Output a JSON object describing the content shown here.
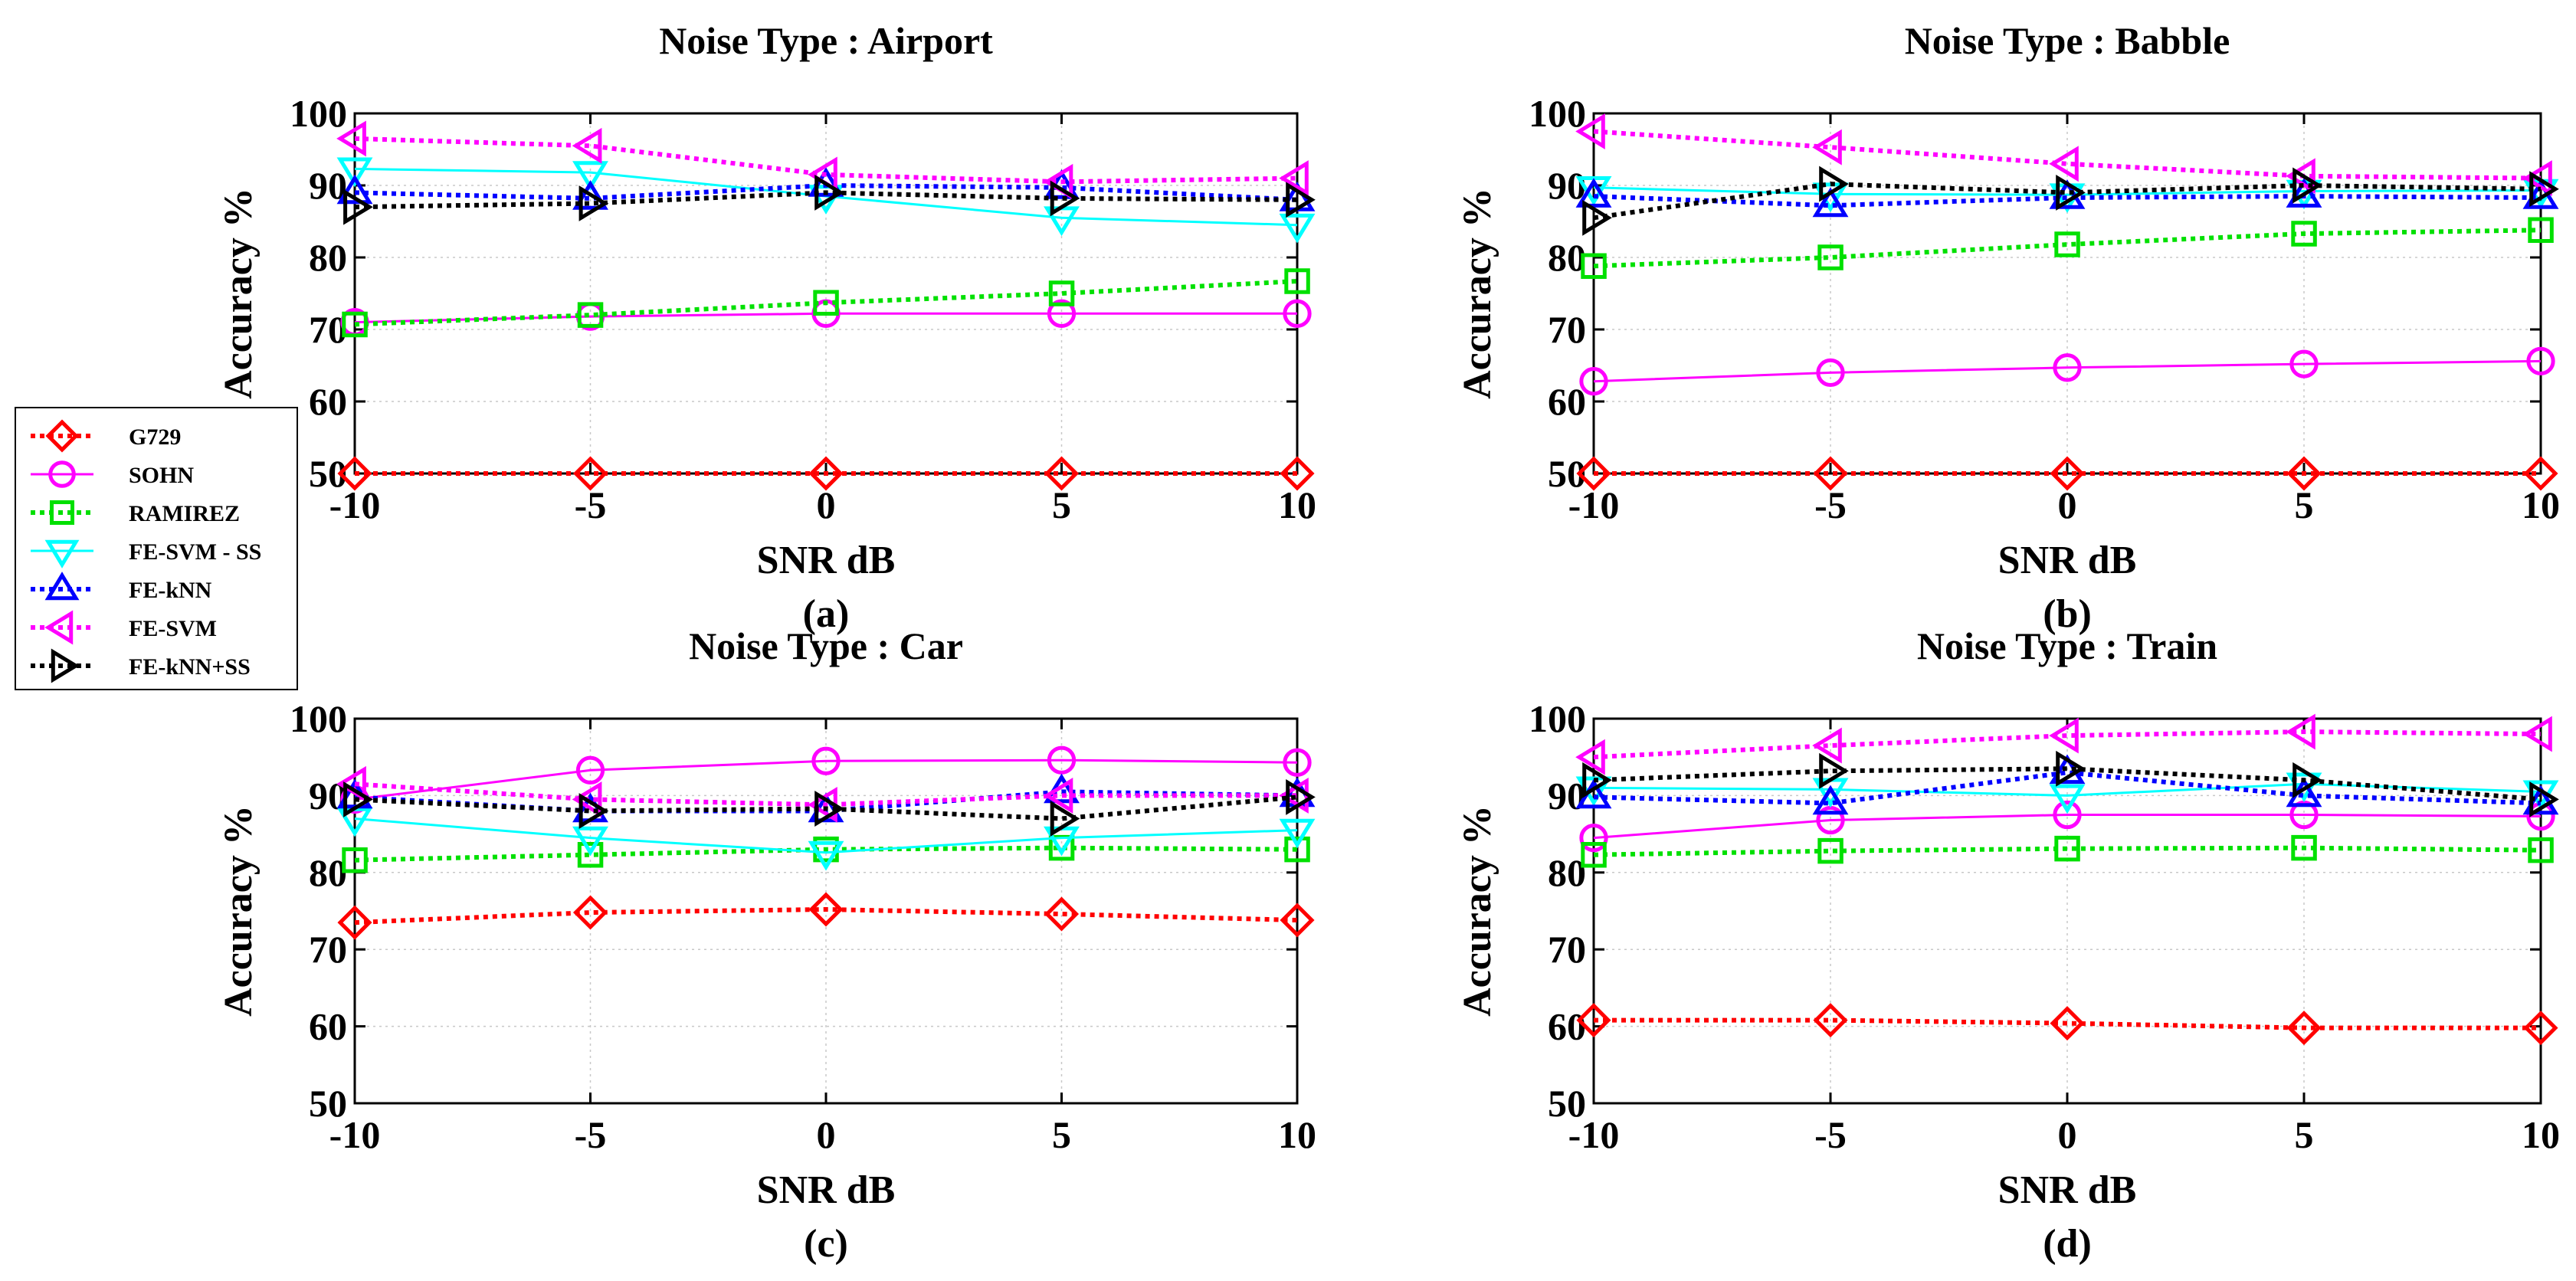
{
  "chart_data": [
    {
      "type": "line",
      "id": "a",
      "title": "Noise Type : Airport",
      "xlabel": "SNR  dB",
      "ylabel": "Accuracy  %",
      "caption": "(a)",
      "x": [
        -10,
        -5,
        0,
        5,
        10
      ],
      "xticks": [
        "-10",
        "-5",
        "0",
        "5",
        "10"
      ],
      "yticks": [
        "50",
        "60",
        "70",
        "80",
        "90",
        "100"
      ],
      "xlim": [
        -10,
        10
      ],
      "ylim": [
        50,
        100
      ],
      "grid": true,
      "series": [
        {
          "name": "G729",
          "values": [
            50,
            50,
            50,
            50,
            50
          ]
        },
        {
          "name": "SOHN",
          "values": [
            71,
            71.8,
            72.2,
            72.2,
            72.2
          ]
        },
        {
          "name": "RAMIREZ",
          "values": [
            70.7,
            72,
            73.7,
            75,
            76.7
          ]
        },
        {
          "name": "FE-SVM - SS",
          "values": [
            92.3,
            91.8,
            88.5,
            85.5,
            84.5
          ]
        },
        {
          "name": "FE-kNN",
          "values": [
            89,
            88.2,
            90,
            89.7,
            88
          ]
        },
        {
          "name": "FE-SVM",
          "values": [
            96.5,
            95.5,
            91.5,
            90.5,
            91
          ]
        },
        {
          "name": "FE-kNN+SS",
          "values": [
            87,
            87.5,
            89,
            88.2,
            88
          ]
        }
      ]
    },
    {
      "type": "line",
      "id": "b",
      "title": "Noise Type : Babble",
      "xlabel": "SNR  dB",
      "ylabel": "Accuracy  %",
      "caption": "(b)",
      "x": [
        -10,
        -5,
        0,
        5,
        10
      ],
      "xticks": [
        "-10",
        "-5",
        "0",
        "5",
        "10"
      ],
      "yticks": [
        "50",
        "60",
        "70",
        "80",
        "90",
        "100"
      ],
      "xlim": [
        -10,
        10
      ],
      "ylim": [
        50,
        100
      ],
      "grid": true,
      "series": [
        {
          "name": "G729",
          "values": [
            50,
            50,
            50,
            50,
            50
          ]
        },
        {
          "name": "SOHN",
          "values": [
            62.8,
            64,
            64.7,
            65.2,
            65.6
          ]
        },
        {
          "name": "RAMIREZ",
          "values": [
            78.8,
            80,
            81.8,
            83.3,
            83.8
          ]
        },
        {
          "name": "FE-SVM - SS",
          "values": [
            89.7,
            88.8,
            88.7,
            89.2,
            89.3
          ]
        },
        {
          "name": "FE-kNN",
          "values": [
            88.5,
            87.2,
            88.3,
            88.5,
            88.3
          ]
        },
        {
          "name": "FE-SVM",
          "values": [
            97.5,
            95.3,
            93,
            91.3,
            91
          ]
        },
        {
          "name": "FE-kNN+SS",
          "values": [
            85.5,
            90.2,
            89,
            90,
            89.5
          ]
        }
      ]
    },
    {
      "type": "line",
      "id": "c",
      "title": "Noise Type : Car",
      "xlabel": "SNR  dB",
      "ylabel": "Accuracy  %",
      "caption": "(c)",
      "x": [
        -10,
        -5,
        0,
        5,
        10
      ],
      "xticks": [
        "-10",
        "-5",
        "0",
        "5",
        "10"
      ],
      "yticks": [
        "50",
        "60",
        "70",
        "80",
        "90",
        "100"
      ],
      "xlim": [
        -10,
        10
      ],
      "ylim": [
        50,
        100
      ],
      "grid": true,
      "series": [
        {
          "name": "G729",
          "values": [
            73.5,
            74.8,
            75.2,
            74.6,
            73.8
          ]
        },
        {
          "name": "SOHN",
          "values": [
            89.5,
            93.3,
            94.5,
            94.6,
            94.3
          ]
        },
        {
          "name": "RAMIREZ",
          "values": [
            81.6,
            82.3,
            83,
            83.2,
            83
          ]
        },
        {
          "name": "FE-SVM - SS",
          "values": [
            87,
            84.5,
            82.6,
            84.5,
            85.5
          ]
        },
        {
          "name": "FE-kNN",
          "values": [
            89.8,
            88,
            88,
            90.5,
            90
          ]
        },
        {
          "name": "FE-SVM",
          "values": [
            91.5,
            89.5,
            88.8,
            90,
            90
          ]
        },
        {
          "name": "FE-kNN+SS",
          "values": [
            89.5,
            88,
            88.3,
            87,
            89.8
          ]
        }
      ]
    },
    {
      "type": "line",
      "id": "d",
      "title": "Noise Type : Train",
      "xlabel": "SNR  dB",
      "ylabel": "Accuracy  %",
      "caption": "(d)",
      "x": [
        -10,
        -5,
        0,
        5,
        10
      ],
      "xticks": [
        "-10",
        "-5",
        "0",
        "5",
        "10"
      ],
      "yticks": [
        "50",
        "60",
        "70",
        "80",
        "90",
        "100"
      ],
      "xlim": [
        -10,
        10
      ],
      "ylim": [
        50,
        100
      ],
      "grid": true,
      "series": [
        {
          "name": "G729",
          "values": [
            60.8,
            60.8,
            60.4,
            59.8,
            59.8
          ]
        },
        {
          "name": "SOHN",
          "values": [
            84.5,
            86.8,
            87.5,
            87.5,
            87.3
          ]
        },
        {
          "name": "RAMIREZ",
          "values": [
            82.3,
            82.8,
            83.1,
            83.2,
            82.9
          ]
        },
        {
          "name": "FE-SVM - SS",
          "values": [
            91,
            90.8,
            90,
            91.5,
            90.5
          ]
        },
        {
          "name": "FE-kNN",
          "values": [
            89.8,
            89,
            93,
            90,
            89
          ]
        },
        {
          "name": "FE-SVM",
          "values": [
            95,
            96.5,
            97.8,
            98.3,
            98
          ]
        },
        {
          "name": "FE-kNN+SS",
          "values": [
            92,
            93.2,
            93.5,
            92,
            89.5
          ]
        }
      ]
    }
  ],
  "legend": {
    "placement": "left",
    "entries": [
      {
        "name": "G729",
        "color": "#ff0000",
        "marker": "diamond",
        "dash": "dotted"
      },
      {
        "name": "SOHN",
        "color": "#ff00ff",
        "marker": "circle",
        "dash": "solid"
      },
      {
        "name": "RAMIREZ",
        "color": "#00e000",
        "marker": "square",
        "dash": "dotted"
      },
      {
        "name": "FE-SVM - SS",
        "color": "#00ffff",
        "marker": "triangle-down",
        "dash": "solid"
      },
      {
        "name": "FE-kNN",
        "color": "#0000ff",
        "marker": "triangle-up",
        "dash": "dotted"
      },
      {
        "name": "FE-SVM",
        "color": "#ff00ff",
        "marker": "triangle-left",
        "dash": "dotted"
      },
      {
        "name": "FE-kNN+SS",
        "color": "#000000",
        "marker": "triangle-right",
        "dash": "dotted"
      }
    ]
  }
}
